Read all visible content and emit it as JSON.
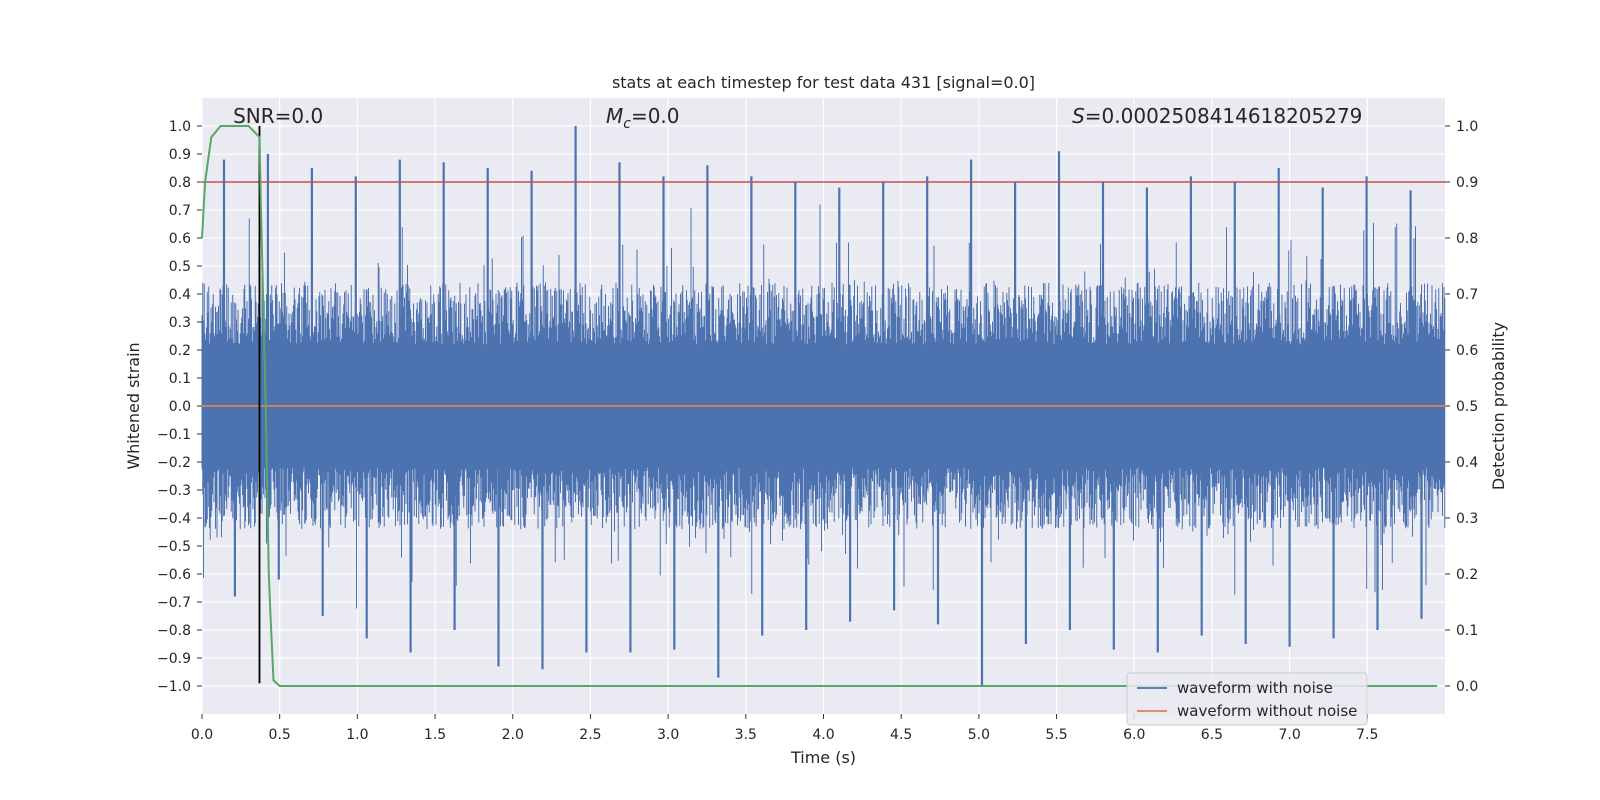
{
  "chart_data": {
    "type": "line",
    "title": "stats at each timestep for test data 431 [signal=0.0]",
    "xlabel": "Time (s)",
    "ylabel": "Whitened strain",
    "y2label": "Detection probability",
    "xlim": [
      0.0,
      8.0
    ],
    "ylim": [
      -1.1,
      1.1
    ],
    "y2lim": [
      -0.05,
      1.05
    ],
    "xticks": [
      0.0,
      0.5,
      1.0,
      1.5,
      2.0,
      2.5,
      3.0,
      3.5,
      4.0,
      4.5,
      5.0,
      5.5,
      6.0,
      6.5,
      7.0,
      7.5
    ],
    "yticks": [
      -1.0,
      -0.9,
      -0.8,
      -0.7,
      -0.6,
      -0.5,
      -0.4,
      -0.3,
      -0.2,
      -0.1,
      0.0,
      0.1,
      0.2,
      0.3,
      0.4,
      0.5,
      0.6,
      0.7,
      0.8,
      0.9,
      1.0
    ],
    "y2ticks": [
      0.0,
      0.1,
      0.2,
      0.3,
      0.4,
      0.5,
      0.6,
      0.7,
      0.8,
      0.9,
      1.0
    ],
    "grid": true,
    "background": "#eaeaf2",
    "series": [
      {
        "name": "waveform with noise",
        "color": "#4c72b0",
        "axis": "left",
        "description": "dense whitened noise, amplitude mostly within ±0.45 with spikes to ±1.0",
        "envelope_max_peaks": [
          0.88,
          0.9,
          0.85,
          0.82,
          0.88,
          0.87,
          0.85,
          0.84,
          1.0,
          0.87,
          0.82,
          0.86,
          0.82,
          0.8,
          0.78,
          0.8,
          0.82,
          0.88,
          0.8,
          0.91,
          0.8,
          0.78,
          0.82,
          0.8,
          0.85,
          0.78,
          0.82,
          0.77
        ],
        "envelope_min_peaks": [
          -0.68,
          -0.62,
          -0.75,
          -0.83,
          -0.88,
          -0.8,
          -0.93,
          -0.94,
          -0.88,
          -0.88,
          -0.87,
          -0.97,
          -0.82,
          -0.8,
          -0.77,
          -0.73,
          -0.78,
          -1.0,
          -0.85,
          -0.8,
          -0.87,
          -0.88,
          -0.82,
          -0.85,
          -0.86,
          -0.83,
          -0.8,
          -0.76
        ]
      },
      {
        "name": "waveform without noise",
        "color": "#dd8452",
        "axis": "left",
        "x": [
          0.0,
          8.0
        ],
        "y": [
          0.0,
          0.0
        ]
      },
      {
        "name": "detection probability",
        "color": "#55a868",
        "axis": "right",
        "in_legend": false,
        "x": [
          0.0,
          0.02,
          0.06,
          0.12,
          0.18,
          0.25,
          0.3,
          0.37,
          0.38,
          0.41,
          0.43,
          0.44,
          0.46,
          0.5,
          0.55,
          7.95
        ],
        "y": [
          0.8,
          0.9,
          0.98,
          1.0,
          1.0,
          1.0,
          1.0,
          0.98,
          0.85,
          0.5,
          0.2,
          0.13,
          0.01,
          0.0,
          0.0,
          0.0
        ]
      }
    ],
    "hlines": [
      {
        "y2": 0.9,
        "color": "#c44e52"
      }
    ],
    "vlines": [
      {
        "x": 0.37,
        "y_from": -0.99,
        "y_to": 1.0,
        "color": "#000000"
      }
    ],
    "annotations": [
      {
        "id": "snr",
        "text_plain": "SNR=0.0",
        "x": 0.2,
        "y": 1.01
      },
      {
        "id": "mc",
        "symbol": "M",
        "subscript": "c",
        "text_rest": "=0.0",
        "x": 2.6,
        "y": 1.01
      },
      {
        "id": "s",
        "symbol": "S",
        "text_rest": "=0.0002508414618205279",
        "x": 5.6,
        "y": 1.01
      }
    ],
    "legend": {
      "position": "lower-right",
      "entries": [
        {
          "label": "waveform with noise",
          "color": "#4c72b0"
        },
        {
          "label": "waveform without noise",
          "color": "#dd8452"
        }
      ]
    }
  }
}
